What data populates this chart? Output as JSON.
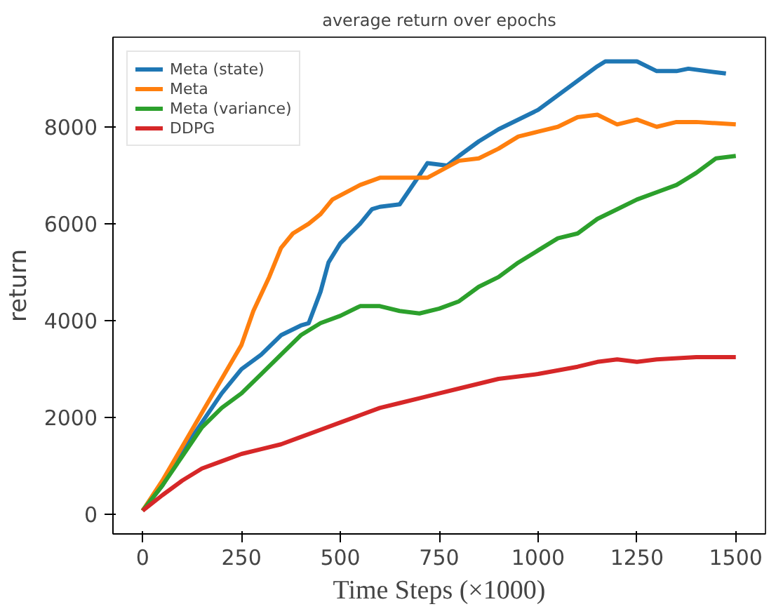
{
  "chart_data": {
    "type": "line",
    "title": "average return over epochs",
    "xlabel": "Time Steps (×1000)",
    "ylabel": "return",
    "xlim": [
      -75,
      1575
    ],
    "ylim": [
      -400,
      9850
    ],
    "xticks": [
      0,
      250,
      500,
      750,
      1000,
      1250,
      1500
    ],
    "yticks": [
      0,
      2000,
      4000,
      6000,
      8000
    ],
    "grid": false,
    "legend": "top left",
    "series": [
      {
        "name": "Meta (state)",
        "color": "#1f77b4",
        "x": [
          0,
          50,
          100,
          150,
          200,
          250,
          300,
          350,
          400,
          420,
          450,
          470,
          500,
          550,
          580,
          600,
          650,
          700,
          720,
          770,
          800,
          850,
          900,
          1000,
          1050,
          1100,
          1150,
          1170,
          1250,
          1300,
          1350,
          1380,
          1475
        ],
        "values": [
          80,
          600,
          1300,
          1900,
          2500,
          3000,
          3300,
          3700,
          3900,
          3950,
          4600,
          5200,
          5600,
          6000,
          6300,
          6350,
          6400,
          7000,
          7250,
          7200,
          7400,
          7700,
          7950,
          8350,
          8650,
          8950,
          9250,
          9350,
          9350,
          9150,
          9150,
          9200,
          9100
        ]
      },
      {
        "name": "Meta",
        "color": "#ff7f0e",
        "x": [
          0,
          50,
          100,
          150,
          200,
          250,
          280,
          320,
          350,
          380,
          420,
          450,
          480,
          550,
          600,
          700,
          720,
          800,
          850,
          900,
          950,
          1000,
          1050,
          1100,
          1150,
          1200,
          1250,
          1300,
          1350,
          1400,
          1500
        ],
        "values": [
          80,
          700,
          1400,
          2100,
          2800,
          3500,
          4200,
          4900,
          5500,
          5800,
          6000,
          6200,
          6500,
          6800,
          6950,
          6950,
          6950,
          7300,
          7350,
          7550,
          7800,
          7900,
          8000,
          8200,
          8250,
          8050,
          8150,
          8000,
          8100,
          8100,
          8050
        ]
      },
      {
        "name": "Meta (variance)",
        "color": "#2ca02c",
        "x": [
          0,
          50,
          100,
          150,
          200,
          250,
          300,
          350,
          400,
          450,
          500,
          550,
          600,
          650,
          700,
          750,
          800,
          850,
          900,
          950,
          1000,
          1050,
          1100,
          1150,
          1200,
          1250,
          1300,
          1350,
          1400,
          1450,
          1500
        ],
        "values": [
          80,
          600,
          1200,
          1800,
          2200,
          2500,
          2900,
          3300,
          3700,
          3950,
          4100,
          4300,
          4300,
          4200,
          4150,
          4250,
          4400,
          4700,
          4900,
          5200,
          5450,
          5700,
          5800,
          6100,
          6300,
          6500,
          6650,
          6800,
          7050,
          7350,
          7400
        ]
      },
      {
        "name": "DDPG",
        "color": "#d62728",
        "x": [
          0,
          50,
          100,
          150,
          200,
          250,
          300,
          350,
          400,
          450,
          500,
          550,
          600,
          650,
          700,
          750,
          800,
          900,
          1000,
          1100,
          1150,
          1200,
          1250,
          1300,
          1400,
          1500
        ],
        "values": [
          80,
          400,
          700,
          950,
          1100,
          1250,
          1350,
          1450,
          1600,
          1750,
          1900,
          2050,
          2200,
          2300,
          2400,
          2500,
          2600,
          2800,
          2900,
          3050,
          3150,
          3200,
          3150,
          3200,
          3250,
          3250
        ]
      }
    ]
  }
}
